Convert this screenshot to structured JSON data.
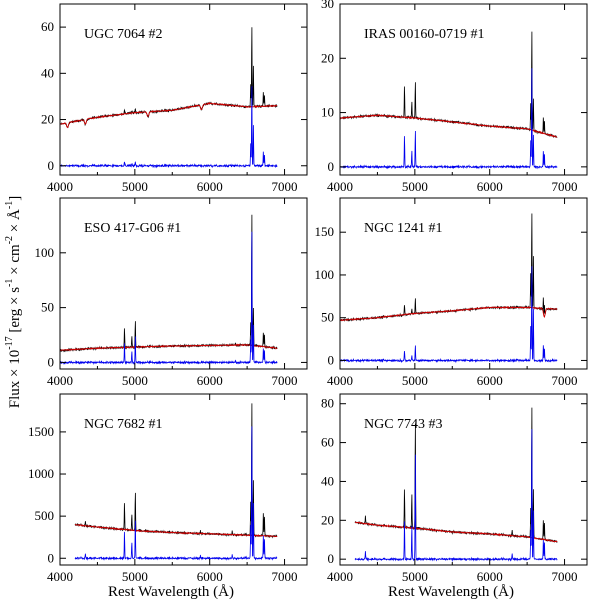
{
  "figure": {
    "xlabel_prefix": "Rest Wavelength (",
    "xlabel_unit": "Å",
    "xlabel_suffix": ")",
    "ylabel_a": "Flux × 10",
    "ylabel_a_sup": "-17",
    "ylabel_b": " [erg × s",
    "ylabel_b_sup": "-1",
    "ylabel_c": " × cm",
    "ylabel_c_sup": "-2",
    "ylabel_d": " × ",
    "ylabel_d_unit": "Å",
    "ylabel_d_sup": "-1",
    "ylabel_e": "]"
  },
  "colors": {
    "observed": "#000000",
    "fit": "#cc0000",
    "residual": "#0000ee"
  },
  "chart_data": [
    {
      "type": "line",
      "title": "UGC 7064 #2",
      "xlabel": "",
      "ylabel": "",
      "xlim": [
        4000,
        7300
      ],
      "xticks": [
        4000,
        5000,
        6000,
        7000
      ],
      "ylim": [
        -4,
        70
      ],
      "yticks": [
        0,
        20,
        40,
        60
      ],
      "x_start": 4000,
      "x_end": 6900,
      "continuum": [
        [
          4000,
          18
        ],
        [
          4500,
          21
        ],
        [
          5000,
          23
        ],
        [
          5500,
          24
        ],
        [
          6000,
          27
        ],
        [
          6500,
          25.5
        ],
        [
          6900,
          26
        ]
      ],
      "lines": [
        [
          4861,
          2
        ],
        [
          4959,
          1
        ],
        [
          5007,
          2
        ],
        [
          6548,
          10
        ],
        [
          6563,
          36
        ],
        [
          6584,
          18
        ],
        [
          6717,
          6
        ],
        [
          6731,
          5
        ]
      ],
      "abs": [
        [
          4100,
          2
        ],
        [
          4340,
          2
        ],
        [
          5175,
          2
        ],
        [
          5890,
          2
        ]
      ],
      "series": [
        {
          "name": "observed",
          "color_key": "observed"
        },
        {
          "name": "fit",
          "color_key": "fit"
        },
        {
          "name": "residual",
          "color_key": "residual"
        }
      ]
    },
    {
      "type": "line",
      "title": "IRAS 00160-0719 #1",
      "xlabel": "",
      "ylabel": "",
      "xlim": [
        4000,
        7300
      ],
      "xticks": [
        4000,
        5000,
        6000,
        7000
      ],
      "ylim": [
        -1.5,
        30
      ],
      "yticks": [
        0,
        10,
        20,
        30
      ],
      "x_start": 4000,
      "x_end": 6900,
      "continuum": [
        [
          4000,
          9
        ],
        [
          4500,
          9.5
        ],
        [
          5000,
          9
        ],
        [
          5500,
          8.3
        ],
        [
          6000,
          7.5
        ],
        [
          6500,
          7
        ],
        [
          6900,
          5.5
        ]
      ],
      "lines": [
        [
          4861,
          6
        ],
        [
          4959,
          3
        ],
        [
          5007,
          7
        ],
        [
          6548,
          5
        ],
        [
          6563,
          19
        ],
        [
          6584,
          6
        ],
        [
          6717,
          3
        ],
        [
          6731,
          2.5
        ]
      ],
      "abs": [],
      "series": [
        {
          "name": "observed",
          "color_key": "observed"
        },
        {
          "name": "fit",
          "color_key": "fit"
        },
        {
          "name": "residual",
          "color_key": "residual"
        }
      ]
    },
    {
      "type": "line",
      "title": "ESO 417-G06 #1",
      "xlabel": "",
      "ylabel": "",
      "xlim": [
        4000,
        7300
      ],
      "xticks": [
        4000,
        5000,
        6000,
        7000
      ],
      "ylim": [
        -6,
        150
      ],
      "yticks": [
        0,
        50,
        100
      ],
      "x_start": 4000,
      "x_end": 6900,
      "continuum": [
        [
          4000,
          11
        ],
        [
          4500,
          13
        ],
        [
          5000,
          14
        ],
        [
          5500,
          15
        ],
        [
          6000,
          15.5
        ],
        [
          6500,
          16
        ],
        [
          6900,
          13
        ]
      ],
      "lines": [
        [
          4861,
          18
        ],
        [
          4959,
          10
        ],
        [
          5007,
          25
        ],
        [
          6548,
          20
        ],
        [
          6563,
          125
        ],
        [
          6584,
          35
        ],
        [
          6717,
          14
        ],
        [
          6731,
          12
        ]
      ],
      "abs": [],
      "series": [
        {
          "name": "observed",
          "color_key": "observed"
        },
        {
          "name": "fit",
          "color_key": "fit"
        },
        {
          "name": "residual",
          "color_key": "residual"
        }
      ]
    },
    {
      "type": "line",
      "title": "NGC 1241 #1",
      "xlabel": "",
      "ylabel": "",
      "xlim": [
        4000,
        7300
      ],
      "xticks": [
        4000,
        5000,
        6000,
        7000
      ],
      "ylim": [
        -10,
        190
      ],
      "yticks": [
        0,
        50,
        100,
        150
      ],
      "x_start": 4000,
      "x_end": 6900,
      "continuum": [
        [
          4000,
          47
        ],
        [
          4500,
          50
        ],
        [
          5000,
          55
        ],
        [
          5500,
          58
        ],
        [
          6000,
          62
        ],
        [
          6500,
          62
        ],
        [
          6900,
          60
        ]
      ],
      "lines": [
        [
          4861,
          12
        ],
        [
          4959,
          7
        ],
        [
          5007,
          18
        ],
        [
          6548,
          40
        ],
        [
          6563,
          115
        ],
        [
          6584,
          60
        ],
        [
          6717,
          18
        ],
        [
          6731,
          15
        ]
      ],
      "abs": [
        [
          6730,
          10
        ]
      ],
      "series": [
        {
          "name": "observed",
          "color_key": "observed"
        },
        {
          "name": "fit",
          "color_key": "fit"
        },
        {
          "name": "residual",
          "color_key": "residual"
        }
      ]
    },
    {
      "type": "line",
      "title": "NGC 7682 #1",
      "xlabel": "",
      "ylabel": "",
      "xlim": [
        4000,
        7300
      ],
      "xticks": [
        4000,
        5000,
        6000,
        7000
      ],
      "ylim": [
        -80,
        1950
      ],
      "yticks": [
        0,
        500,
        1000,
        1500
      ],
      "x_start": 4200,
      "x_end": 6900,
      "continuum": [
        [
          4200,
          400
        ],
        [
          4500,
          370
        ],
        [
          5000,
          330
        ],
        [
          5500,
          305
        ],
        [
          6000,
          290
        ],
        [
          6500,
          275
        ],
        [
          6900,
          260
        ]
      ],
      "lines": [
        [
          4340,
          60
        ],
        [
          4861,
          330
        ],
        [
          4959,
          200
        ],
        [
          5007,
          480
        ],
        [
          5876,
          30
        ],
        [
          6300,
          40
        ],
        [
          6548,
          400
        ],
        [
          6563,
          1650
        ],
        [
          6584,
          650
        ],
        [
          6717,
          280
        ],
        [
          6731,
          240
        ]
      ],
      "abs": [],
      "series": [
        {
          "name": "observed",
          "color_key": "observed"
        },
        {
          "name": "fit",
          "color_key": "fit"
        },
        {
          "name": "residual",
          "color_key": "residual"
        }
      ]
    },
    {
      "type": "line",
      "title": "NGC 7743 #3",
      "xlabel": "",
      "ylabel": "",
      "xlim": [
        4000,
        7300
      ],
      "xticks": [
        4000,
        5000,
        6000,
        7000
      ],
      "ylim": [
        -3,
        85
      ],
      "yticks": [
        0,
        20,
        40,
        60,
        80
      ],
      "x_start": 4200,
      "x_end": 6900,
      "continuum": [
        [
          4200,
          19
        ],
        [
          4500,
          17.5
        ],
        [
          5000,
          16
        ],
        [
          5500,
          14
        ],
        [
          6000,
          13
        ],
        [
          6500,
          11.5
        ],
        [
          6900,
          9
        ]
      ],
      "lines": [
        [
          4340,
          4
        ],
        [
          4861,
          20
        ],
        [
          4959,
          18
        ],
        [
          5007,
          56
        ],
        [
          6300,
          3
        ],
        [
          6548,
          15
        ],
        [
          6563,
          70
        ],
        [
          6584,
          25
        ],
        [
          6717,
          10
        ],
        [
          6731,
          9
        ]
      ],
      "abs": [],
      "series": [
        {
          "name": "observed",
          "color_key": "observed"
        },
        {
          "name": "fit",
          "color_key": "fit"
        },
        {
          "name": "residual",
          "color_key": "residual"
        }
      ]
    }
  ]
}
